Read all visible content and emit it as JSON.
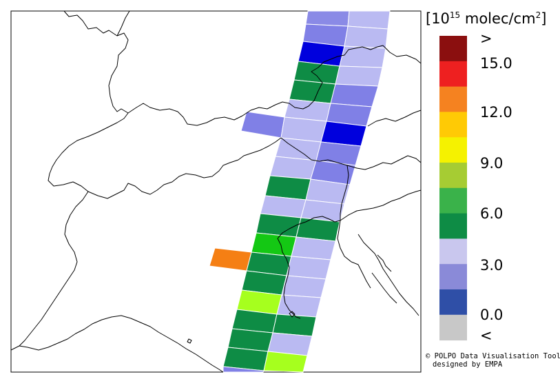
{
  "legend": {
    "unit_prefix": "[10",
    "unit_exp": "15",
    "unit_suffix": " molec/cm",
    "unit_sq": "2",
    "unit_close": "]",
    "labels": [
      ">",
      "15.0",
      "12.0",
      "9.0",
      "6.0",
      "3.0",
      "0.0",
      "<"
    ],
    "swatches": [
      "#8b0f0f",
      "#ee2020",
      "#f58220",
      "#ffca05",
      "#f5f200",
      "#a6cc33",
      "#3ab24a",
      "#0e8c45",
      "#c9c7ee",
      "#8a8ad8",
      "#2f4fa7",
      "#c8c8c8"
    ]
  },
  "credits": {
    "line1": "© POLPO Data Visualisation Tool",
    "line2": "designed by EMPA"
  },
  "swath_colors": {
    "dark_blue": "#0000dd",
    "mid_blue": "#8080e6",
    "light_blue": "#babaf2",
    "dark_green": "#0e8c45",
    "bright_green": "#14c814",
    "yellow_green": "#a6ff1e",
    "orange": "#f57f14"
  }
}
